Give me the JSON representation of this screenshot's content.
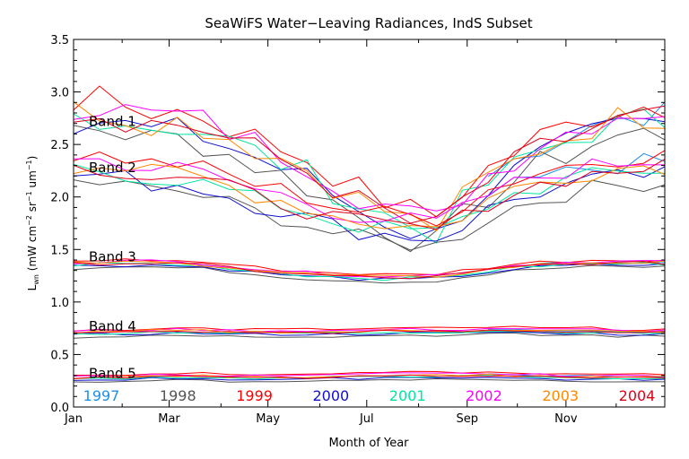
{
  "chart_data": {
    "type": "line",
    "title": "SeaWiFS Water−Leaving Radiances, IndS Subset",
    "xlabel": "Month of Year",
    "ylabel_main": "L",
    "ylabel_sub": "wn",
    "ylabel_units_pre": "(mW cm",
    "ylabel_sup1": "−2",
    "ylabel_mid": "sr",
    "ylabel_sup2": "−1",
    "ylabel_end": "um",
    "ylabel_sup3": "−1",
    "ylabel_close": ")",
    "xlim": [
      0,
      365
    ],
    "ylim": [
      0,
      3.5
    ],
    "x_ticks": [
      {
        "label": "Jan",
        "value": 0
      },
      {
        "label": "Mar",
        "value": 59
      },
      {
        "label": "May",
        "value": 120
      },
      {
        "label": "Jul",
        "value": 181
      },
      {
        "label": "Sep",
        "value": 243
      },
      {
        "label": "Nov",
        "value": 304
      }
    ],
    "y_ticks": [
      "0.0",
      "0.5",
      "1.0",
      "1.5",
      "2.0",
      "2.5",
      "3.0",
      "3.5"
    ],
    "y_tick_values": [
      0,
      0.5,
      1.0,
      1.5,
      2.0,
      2.5,
      3.0,
      3.5
    ],
    "band_labels": [
      {
        "label": "Band 1",
        "y": 2.72
      },
      {
        "label": "Band 2",
        "y": 2.28
      },
      {
        "label": "Band 3",
        "y": 1.43
      },
      {
        "label": "Band 4",
        "y": 0.77
      },
      {
        "label": "Band 5",
        "y": 0.32
      }
    ],
    "x_days": [
      0,
      16,
      32,
      48,
      64,
      80,
      96,
      112,
      128,
      144,
      160,
      176,
      192,
      208,
      224,
      240,
      256,
      272,
      288,
      304,
      320,
      336,
      352,
      365
    ],
    "band_profiles": [
      {
        "band": "Band 1",
        "values": [
          2.8,
          2.8,
          2.75,
          2.7,
          2.7,
          2.65,
          2.55,
          2.45,
          2.35,
          2.25,
          2.1,
          1.95,
          1.85,
          1.75,
          1.7,
          1.95,
          2.15,
          2.3,
          2.45,
          2.55,
          2.65,
          2.72,
          2.75,
          2.75
        ]
      },
      {
        "band": "Band 2",
        "values": [
          2.28,
          2.28,
          2.25,
          2.2,
          2.2,
          2.15,
          2.08,
          2.0,
          1.95,
          1.88,
          1.8,
          1.75,
          1.72,
          1.7,
          1.68,
          1.8,
          1.95,
          2.05,
          2.12,
          2.18,
          2.22,
          2.25,
          2.28,
          2.28
        ]
      },
      {
        "band": "Band 3",
        "values": [
          1.36,
          1.37,
          1.37,
          1.37,
          1.36,
          1.35,
          1.33,
          1.3,
          1.28,
          1.26,
          1.25,
          1.24,
          1.23,
          1.23,
          1.24,
          1.27,
          1.3,
          1.33,
          1.35,
          1.36,
          1.37,
          1.37,
          1.37,
          1.37
        ]
      },
      {
        "band": "Band 4",
        "values": [
          0.7,
          0.71,
          0.71,
          0.72,
          0.72,
          0.72,
          0.71,
          0.71,
          0.71,
          0.71,
          0.71,
          0.71,
          0.72,
          0.72,
          0.72,
          0.72,
          0.73,
          0.73,
          0.72,
          0.72,
          0.72,
          0.71,
          0.71,
          0.71
        ]
      },
      {
        "band": "Band 5",
        "values": [
          0.27,
          0.28,
          0.28,
          0.29,
          0.29,
          0.29,
          0.28,
          0.28,
          0.28,
          0.28,
          0.29,
          0.29,
          0.3,
          0.3,
          0.3,
          0.3,
          0.3,
          0.29,
          0.29,
          0.28,
          0.28,
          0.28,
          0.28,
          0.28
        ]
      }
    ],
    "series": [
      {
        "name": "1997",
        "color": "#1e8fe8",
        "start_day": 245
      },
      {
        "name": "1998",
        "color": "#555555"
      },
      {
        "name": "1999",
        "color": "#ff0000"
      },
      {
        "name": "2000",
        "color": "#1010cc"
      },
      {
        "name": "2001",
        "color": "#00e5a0"
      },
      {
        "name": "2002",
        "color": "#ff00ff"
      },
      {
        "name": "2003",
        "color": "#ff8800"
      },
      {
        "name": "2004",
        "color": "#e0001a"
      }
    ],
    "legend_placement": "bottom, inside plot",
    "grid": false
  }
}
